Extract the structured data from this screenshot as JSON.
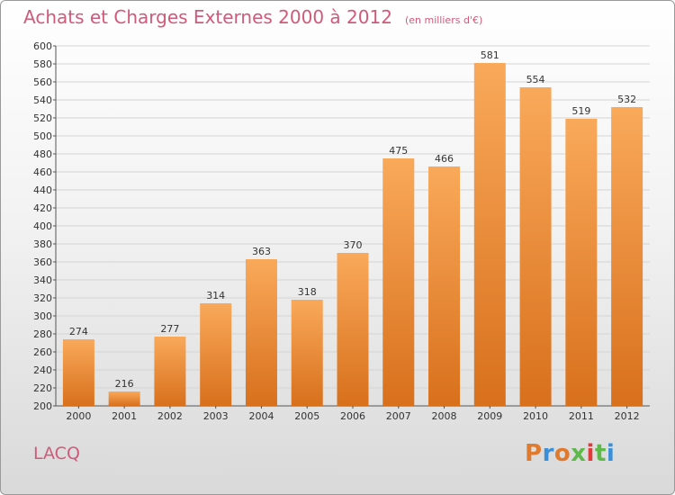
{
  "header": {
    "title": "Achats et Charges Externes 2000 à 2012",
    "subtitle": "(en milliers d'€)"
  },
  "footer": {
    "place": "LACQ",
    "logo": "Proxiti"
  },
  "colors": {
    "bar_top": "#f9a95a",
    "bar_bottom": "#d8701c",
    "title": "#d05a7a",
    "logo_letters": [
      "#e07a2e",
      "#3a8fd8",
      "#e07a2e",
      "#5fb84a",
      "#e03c3c",
      "#5fb84a",
      "#3a8fd8"
    ]
  },
  "chart_data": {
    "type": "bar",
    "title": "Achats et Charges Externes 2000 à 2012",
    "subtitle": "(en milliers d'€)",
    "xlabel": "",
    "ylabel": "",
    "categories": [
      "2000",
      "2001",
      "2002",
      "2003",
      "2004",
      "2005",
      "2006",
      "2007",
      "2008",
      "2009",
      "2010",
      "2011",
      "2012"
    ],
    "values": [
      274,
      216,
      277,
      314,
      363,
      318,
      370,
      475,
      466,
      581,
      554,
      519,
      532
    ],
    "ylim": [
      200,
      600
    ],
    "ytick_step": 20,
    "grid": true,
    "legend": "none"
  }
}
